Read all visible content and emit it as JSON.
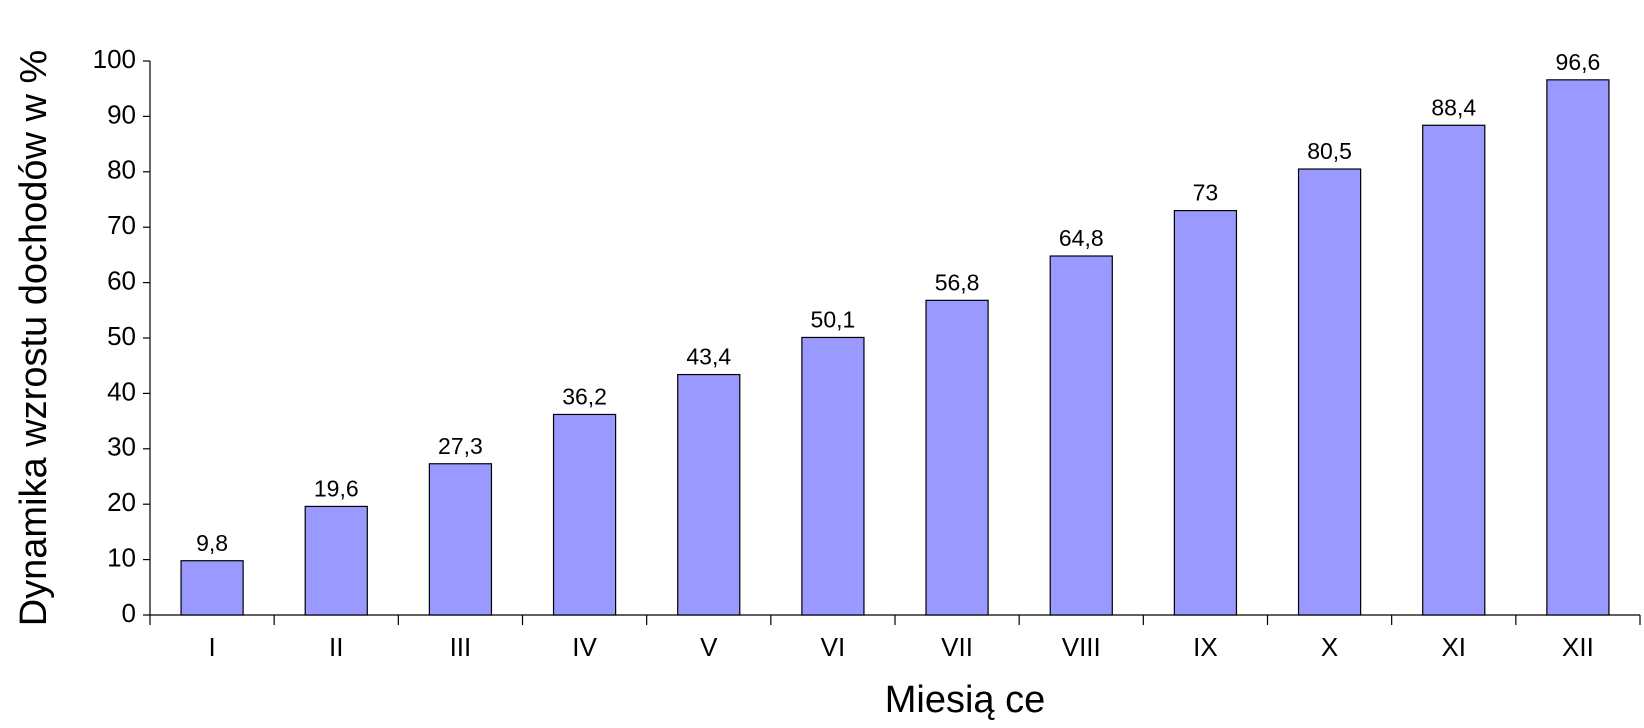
{
  "chart_data": {
    "type": "bar",
    "categories": [
      "I",
      "II",
      "III",
      "IV",
      "V",
      "VI",
      "VII",
      "VIII",
      "IX",
      "X",
      "XI",
      "XII"
    ],
    "values": [
      9.8,
      19.6,
      27.3,
      36.2,
      43.4,
      50.1,
      56.8,
      64.8,
      73,
      80.5,
      88.4,
      96.6
    ],
    "value_labels": [
      "9,8",
      "19,6",
      "27,3",
      "36,2",
      "43,4",
      "50,1",
      "56,8",
      "64,8",
      "73",
      "80,5",
      "88,4",
      "96,6"
    ],
    "color": "#9999ff",
    "x_label": "Miesią ce",
    "y_label": "Dynamika wzrostu dochodów w %",
    "ylim": [
      0,
      100
    ],
    "yticks": [
      0,
      10,
      20,
      30,
      40,
      50,
      60,
      70,
      80,
      90,
      100
    ],
    "grid": false
  }
}
